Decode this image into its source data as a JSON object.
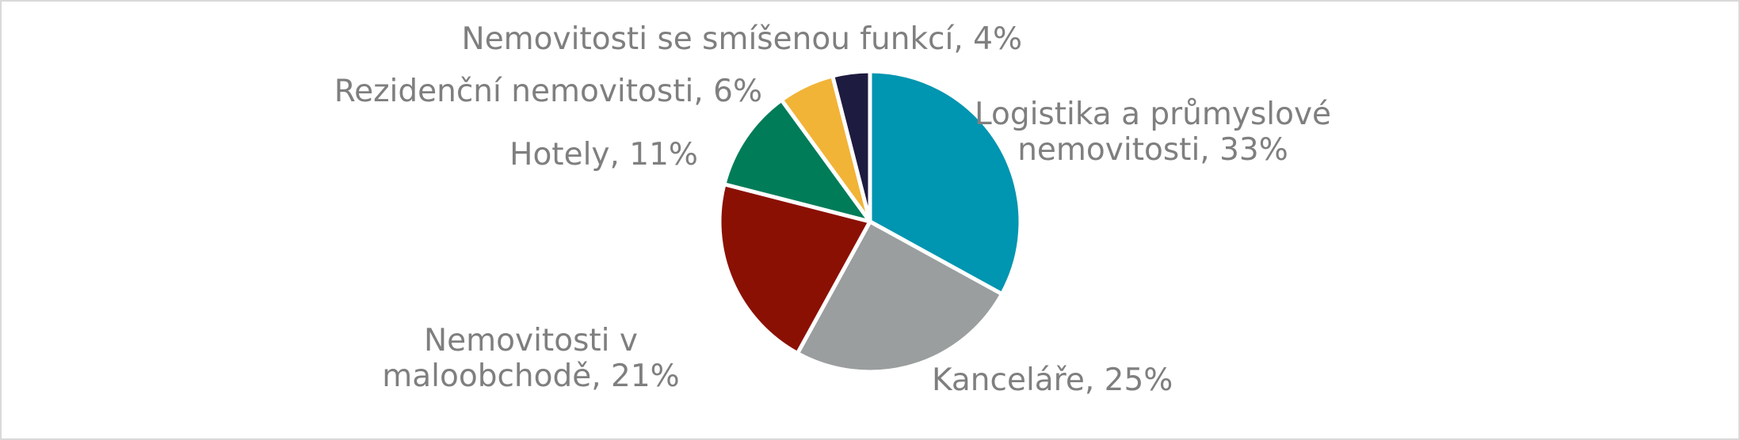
{
  "chart_data": {
    "type": "pie",
    "title": "",
    "slices": [
      {
        "label_lines": [
          "Logistika a průmyslové",
          "nemovitosti, 33%"
        ],
        "name": "Logistika a průmyslové nemovitosti",
        "value": 33,
        "color": "#0095b0"
      },
      {
        "label_lines": [
          "Kanceláře, 25%"
        ],
        "name": "Kanceláře",
        "value": 25,
        "color": "#9a9e9e"
      },
      {
        "label_lines": [
          "Nemovitosti v",
          "maloobchodě, 21%"
        ],
        "name": "Nemovitosti v maloobchodě",
        "value": 21,
        "color": "#8b1004"
      },
      {
        "label_lines": [
          "Hotely, 11%"
        ],
        "name": "Hotely",
        "value": 11,
        "color": "#007c58"
      },
      {
        "label_lines": [
          "Rezidenční nemovitosti, 6%"
        ],
        "name": "Rezidenční nemovitosti",
        "value": 6,
        "color": "#f1b437"
      },
      {
        "label_lines": [
          "Nemovitosti se smíšenou funkcí, 4%"
        ],
        "name": "Nemovitosti se smíšenou funkcí",
        "value": 4,
        "color": "#1e1b40"
      }
    ],
    "start_angle": "12 o'clock",
    "direction": "clockwise",
    "legend": "none",
    "label_color": "#7f7f7f",
    "separator_color": "#ffffff"
  }
}
